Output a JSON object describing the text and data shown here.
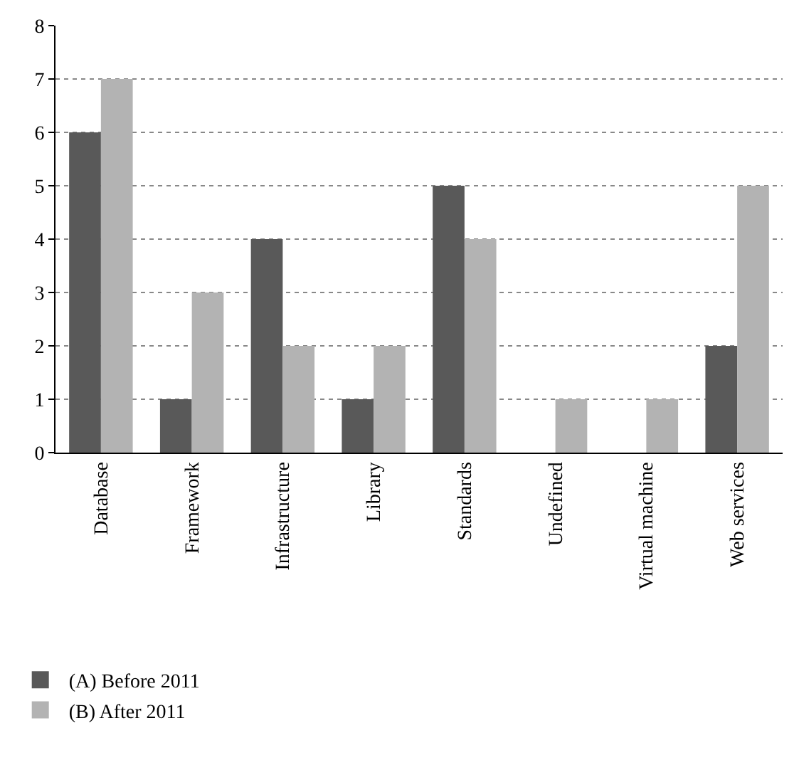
{
  "chart_data": {
    "type": "bar",
    "categories": [
      "Database",
      "Framework",
      "Infrastructure",
      "Library",
      "Standards",
      "Undefined",
      "Virtual machine",
      "Web services"
    ],
    "series": [
      {
        "name": "(A) Before 2011",
        "color": "#595959",
        "values": [
          6,
          1,
          4,
          1,
          5,
          0,
          0,
          2
        ]
      },
      {
        "name": "(B) After 2011",
        "color": "#b3b3b3",
        "values": [
          7,
          3,
          2,
          2,
          4,
          1,
          1,
          5
        ]
      }
    ],
    "ylim": [
      0,
      8
    ],
    "yticks": [
      0,
      1,
      2,
      3,
      4,
      5,
      6,
      7,
      8
    ],
    "grid": "y",
    "legend": "bottom left"
  }
}
